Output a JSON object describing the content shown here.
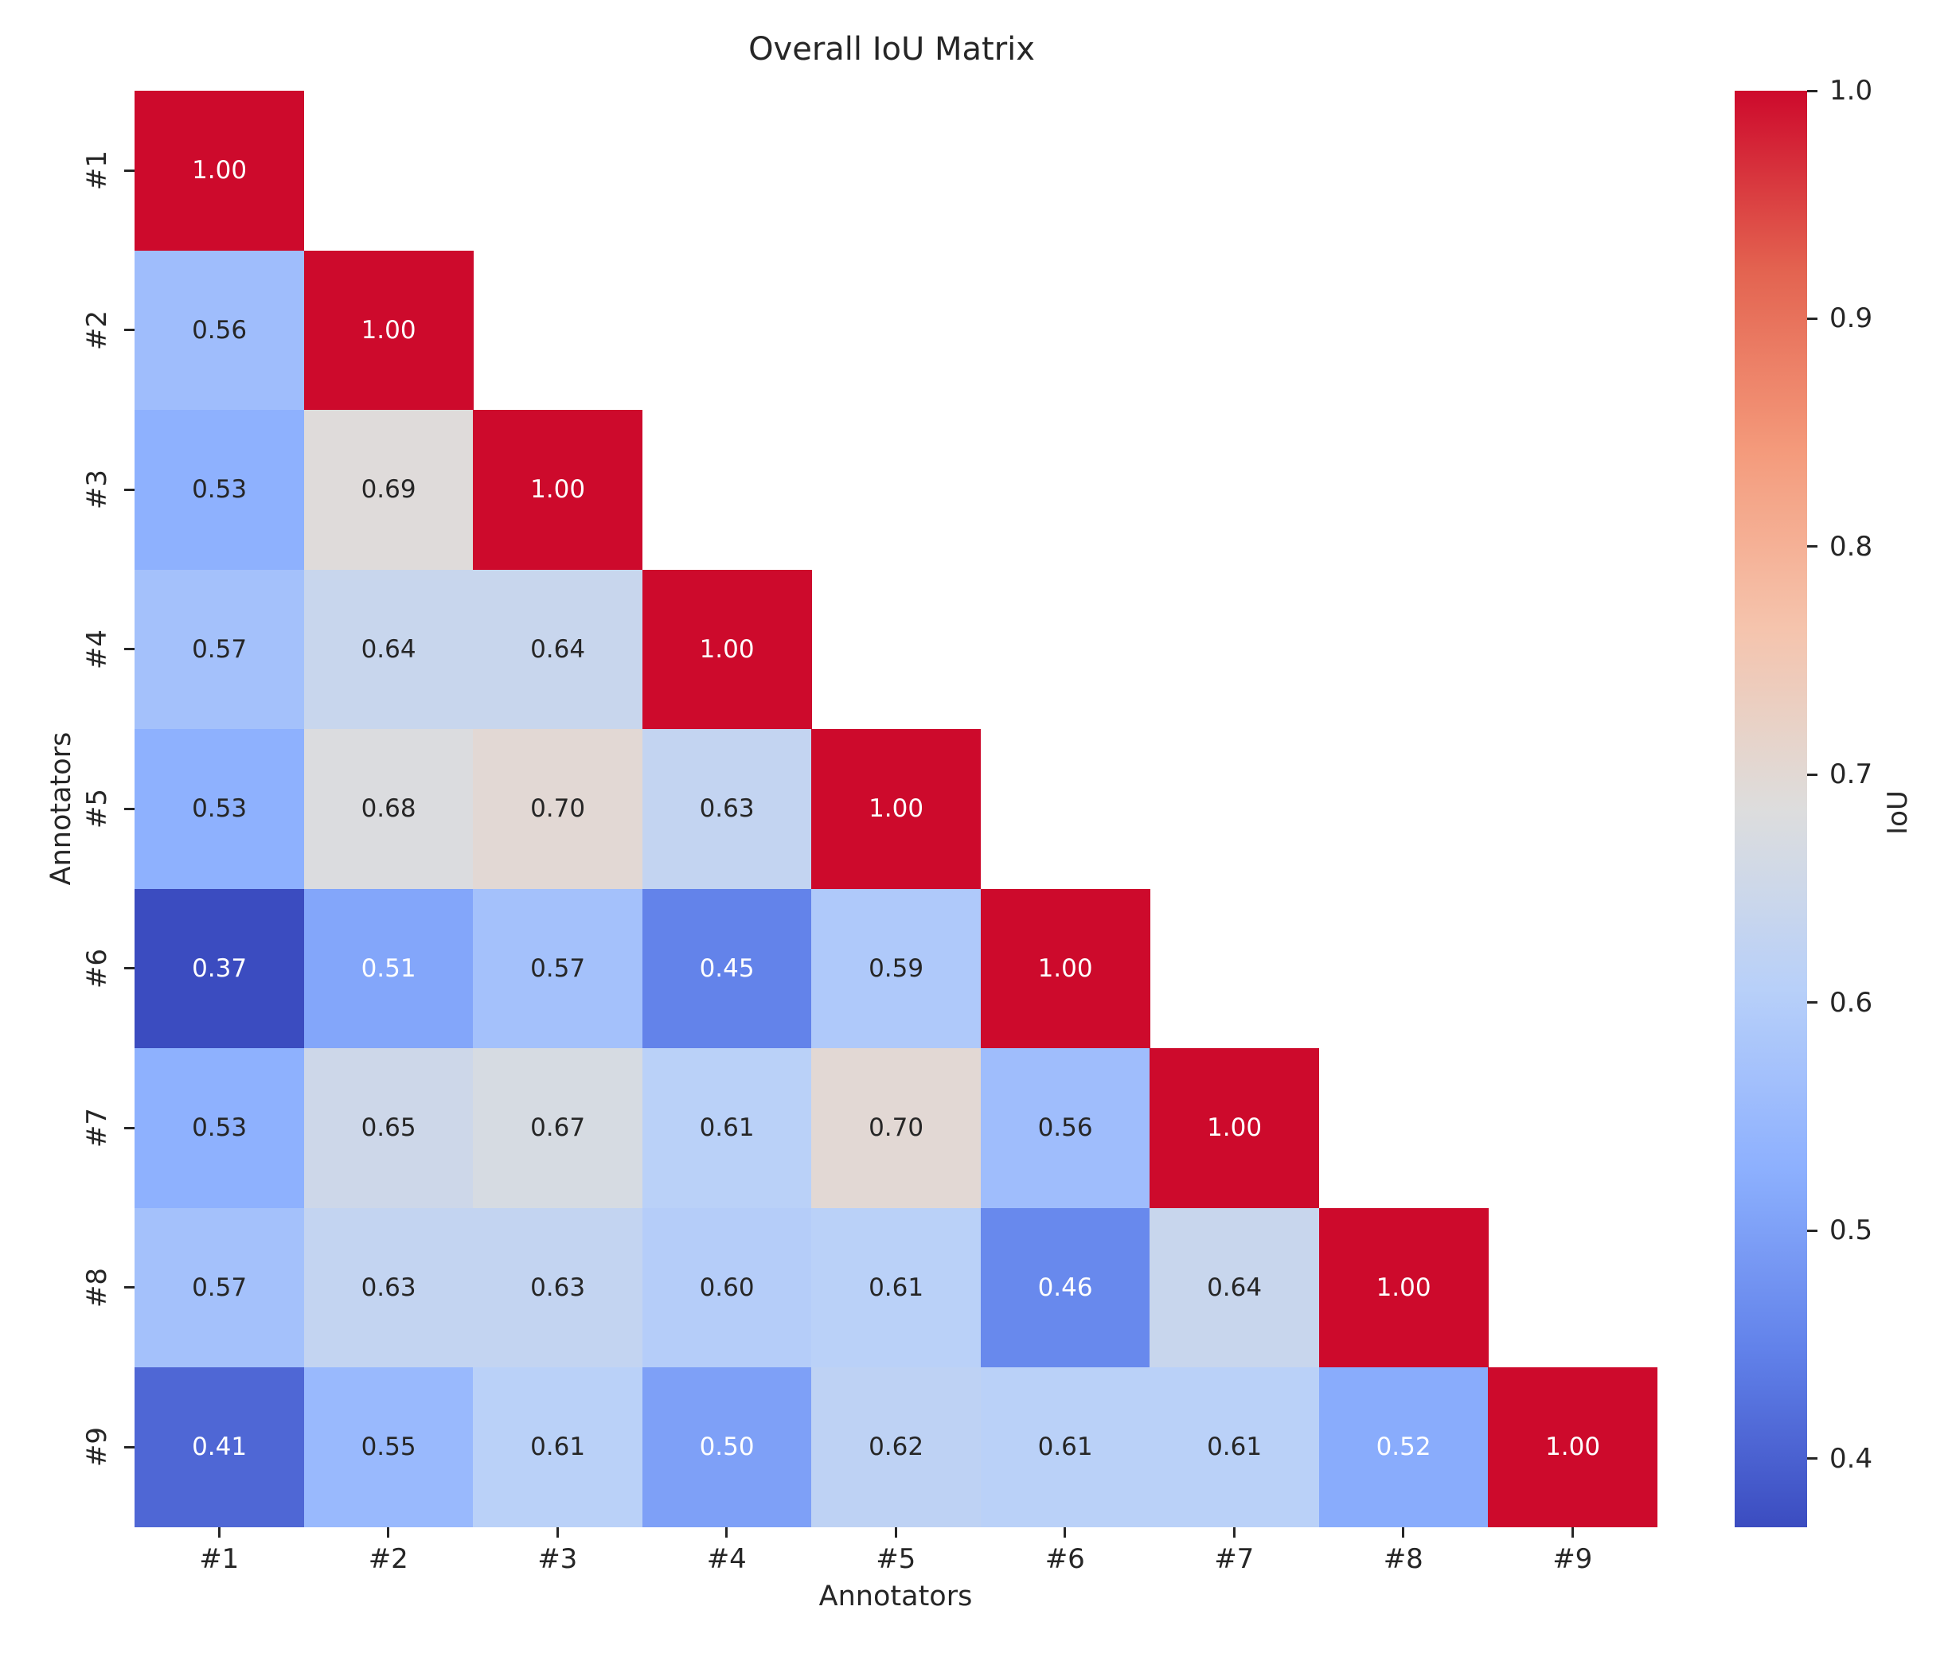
{
  "title": "Overall IoU Matrix",
  "x_axis": {
    "label": "Annotators",
    "ticks": [
      "#1",
      "#2",
      "#3",
      "#4",
      "#5",
      "#6",
      "#7",
      "#8",
      "#9"
    ]
  },
  "y_axis": {
    "label": "Annotators",
    "ticks": [
      "#1",
      "#2",
      "#3",
      "#4",
      "#5",
      "#6",
      "#7",
      "#8",
      "#9"
    ]
  },
  "colorbar": {
    "label": "IoU",
    "tick_labels": [
      "1.0",
      "0.9",
      "0.8",
      "0.7",
      "0.6",
      "0.5",
      "0.4"
    ],
    "tick_values": [
      1.0,
      0.9,
      0.8,
      0.7,
      0.6,
      0.5,
      0.4
    ],
    "vmin": 0.37,
    "vmax": 1.0
  },
  "colors": {
    "colormap": "coolwarm",
    "min_color": "#3b4cc0",
    "mid_color": "#dddddd",
    "max_color": "#cd0a2c",
    "annotation_dark": "#262626",
    "annotation_light": "#ffffff",
    "background": "#ffffff"
  },
  "chart_data": {
    "type": "heatmap",
    "title": "Overall IoU Matrix",
    "xlabel": "Annotators",
    "ylabel": "Annotators",
    "categories": [
      "#1",
      "#2",
      "#3",
      "#4",
      "#5",
      "#6",
      "#7",
      "#8",
      "#9"
    ],
    "shape": "lower-triangular",
    "value_range": [
      0.37,
      1.0
    ],
    "colorbar_label": "IoU",
    "matrix": [
      [
        1.0,
        null,
        null,
        null,
        null,
        null,
        null,
        null,
        null
      ],
      [
        0.56,
        1.0,
        null,
        null,
        null,
        null,
        null,
        null,
        null
      ],
      [
        0.53,
        0.69,
        1.0,
        null,
        null,
        null,
        null,
        null,
        null
      ],
      [
        0.57,
        0.64,
        0.64,
        1.0,
        null,
        null,
        null,
        null,
        null
      ],
      [
        0.53,
        0.68,
        0.7,
        0.63,
        1.0,
        null,
        null,
        null,
        null
      ],
      [
        0.37,
        0.51,
        0.57,
        0.45,
        0.59,
        1.0,
        null,
        null,
        null
      ],
      [
        0.53,
        0.65,
        0.67,
        0.61,
        0.7,
        0.56,
        1.0,
        null,
        null
      ],
      [
        0.57,
        0.63,
        0.63,
        0.6,
        0.61,
        0.46,
        0.64,
        1.0,
        null
      ],
      [
        0.41,
        0.55,
        0.61,
        0.5,
        0.62,
        0.61,
        0.61,
        0.52,
        1.0
      ]
    ]
  }
}
